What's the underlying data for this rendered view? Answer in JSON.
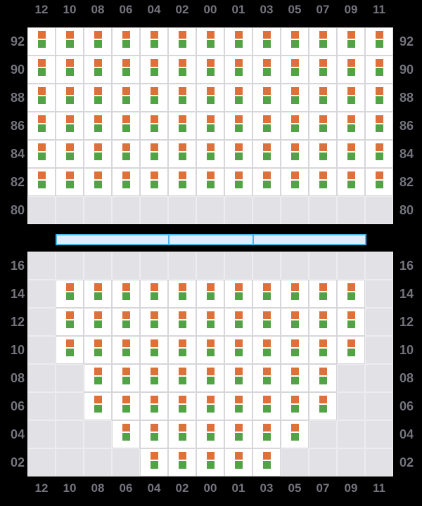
{
  "colors": {
    "background": "#000000",
    "container_top_mark": "#E0703A",
    "container_bottom_mark": "#52A246",
    "filled_cell_bg": "#FFFFFF",
    "filled_cell_border": "#D6D6DB",
    "empty_cell_bg": "#E2E2E6",
    "empty_cell_border": "#EDEDF0",
    "hatch_cover_fill": "#DBEEFA",
    "hatch_cover_border": "#49B5EA",
    "label_text": "#74747E"
  },
  "columns": [
    "12",
    "10",
    "08",
    "06",
    "04",
    "02",
    "00",
    "01",
    "03",
    "05",
    "07",
    "09",
    "11"
  ],
  "deck_grid": {
    "tiers": [
      {
        "label": "92",
        "cells": [
          1,
          1,
          1,
          1,
          1,
          1,
          1,
          1,
          1,
          1,
          1,
          1,
          1
        ]
      },
      {
        "label": "90",
        "cells": [
          1,
          1,
          1,
          1,
          1,
          1,
          1,
          1,
          1,
          1,
          1,
          1,
          1
        ]
      },
      {
        "label": "88",
        "cells": [
          1,
          1,
          1,
          1,
          1,
          1,
          1,
          1,
          1,
          1,
          1,
          1,
          1
        ]
      },
      {
        "label": "86",
        "cells": [
          1,
          1,
          1,
          1,
          1,
          1,
          1,
          1,
          1,
          1,
          1,
          1,
          1
        ]
      },
      {
        "label": "84",
        "cells": [
          1,
          1,
          1,
          1,
          1,
          1,
          1,
          1,
          1,
          1,
          1,
          1,
          1
        ]
      },
      {
        "label": "82",
        "cells": [
          1,
          1,
          1,
          1,
          1,
          1,
          1,
          1,
          1,
          1,
          1,
          1,
          1
        ]
      },
      {
        "label": "80",
        "cells": [
          0,
          0,
          0,
          0,
          0,
          0,
          0,
          0,
          0,
          0,
          0,
          0,
          0
        ]
      }
    ]
  },
  "hatch_covers": {
    "segments": [
      {
        "span": 4
      },
      {
        "span": 3
      },
      {
        "span": 4
      }
    ]
  },
  "hold_grid": {
    "tiers": [
      {
        "label": "16",
        "cells": [
          0,
          0,
          0,
          0,
          0,
          0,
          0,
          0,
          0,
          0,
          0,
          0,
          0
        ]
      },
      {
        "label": "14",
        "cells": [
          0,
          1,
          1,
          1,
          1,
          1,
          1,
          1,
          1,
          1,
          1,
          1,
          0
        ]
      },
      {
        "label": "12",
        "cells": [
          0,
          1,
          1,
          1,
          1,
          1,
          1,
          1,
          1,
          1,
          1,
          1,
          0
        ]
      },
      {
        "label": "10",
        "cells": [
          0,
          1,
          1,
          1,
          1,
          1,
          1,
          1,
          1,
          1,
          1,
          1,
          0
        ]
      },
      {
        "label": "08",
        "cells": [
          0,
          0,
          1,
          1,
          1,
          1,
          1,
          1,
          1,
          1,
          1,
          0,
          0
        ]
      },
      {
        "label": "06",
        "cells": [
          0,
          0,
          1,
          1,
          1,
          1,
          1,
          1,
          1,
          1,
          1,
          0,
          0
        ]
      },
      {
        "label": "04",
        "cells": [
          0,
          0,
          0,
          1,
          1,
          1,
          1,
          1,
          1,
          1,
          0,
          0,
          0
        ]
      },
      {
        "label": "02",
        "cells": [
          0,
          0,
          0,
          0,
          1,
          1,
          1,
          1,
          1,
          0,
          0,
          0,
          0
        ]
      }
    ]
  }
}
